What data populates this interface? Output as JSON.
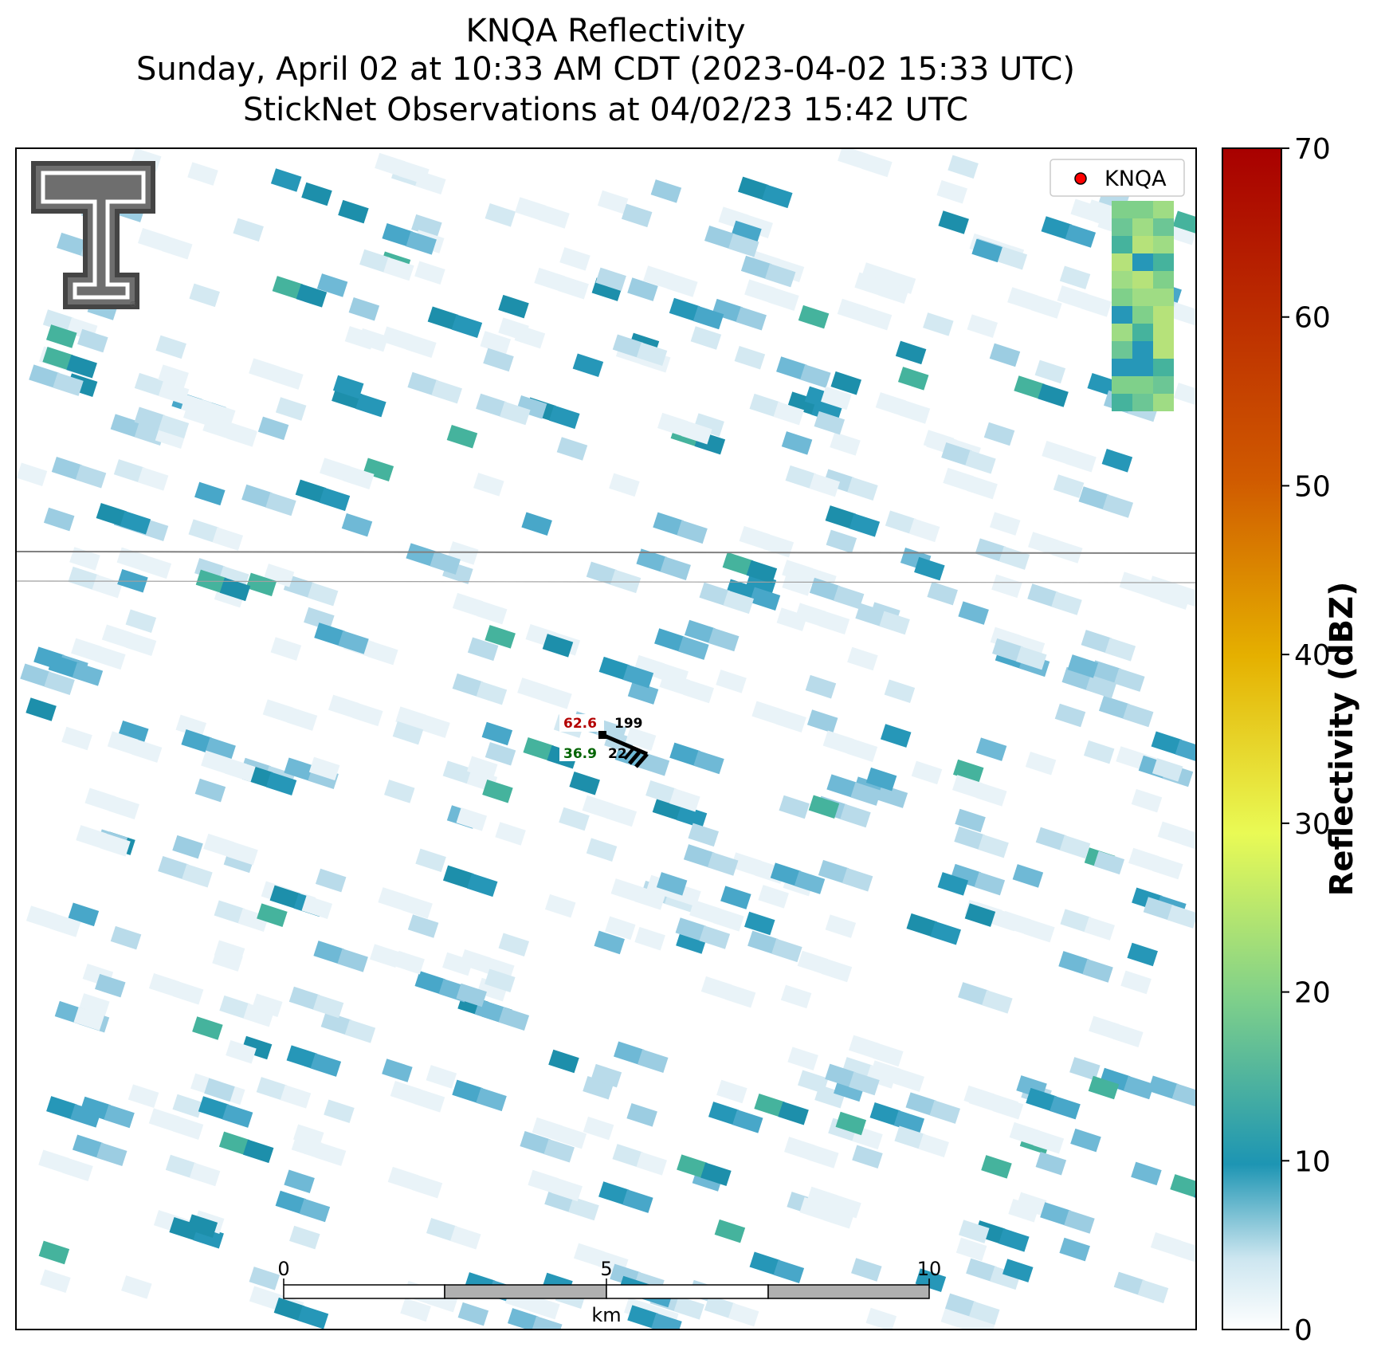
{
  "title": {
    "line1": "KNQA Reflectivity",
    "line2": "Sunday, April 02 at 10:33 AM CDT (2023-04-02 15:33 UTC)",
    "line3": "StickNet Observations at 04/02/23 15:42 UTC"
  },
  "legend": {
    "label": "KNQA",
    "marker_color": "#ff0000"
  },
  "station": {
    "temperature": "62.6",
    "temperature_color": "#b30000",
    "dewpoint": "36.9",
    "dewpoint_color": "#006400",
    "pressure": "199",
    "extra": "22"
  },
  "scale_bar": {
    "ticks": [
      "0",
      "5",
      "10"
    ],
    "unit": "km"
  },
  "colorbar": {
    "label": "Reflectivity (dBZ)",
    "min": 0,
    "max": 70,
    "ticks": [
      "0",
      "10",
      "20",
      "30",
      "40",
      "50",
      "60",
      "70"
    ],
    "stops": [
      "#ffffff",
      "#8fc7dc",
      "#1d95b3",
      "#5fc690",
      "#e9fa55",
      "#e5b000",
      "#d05a00",
      "#a80000"
    ]
  },
  "logo": {
    "description_icon": "texas-tech-double-t-logo"
  }
}
